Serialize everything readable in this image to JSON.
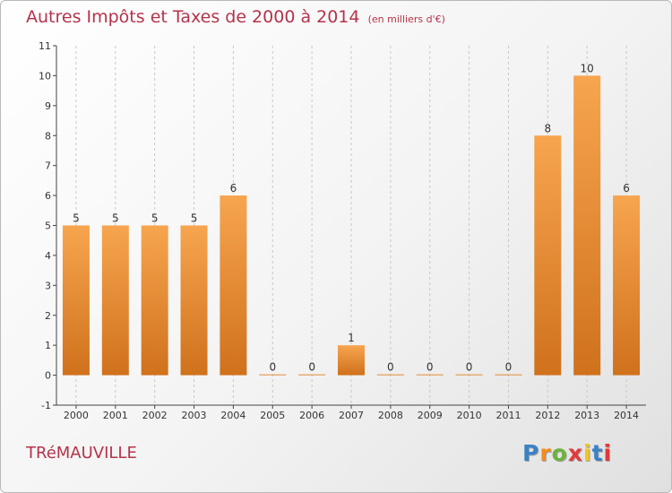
{
  "header": {
    "title": "Autres Impôts et Taxes de 2000 à 2014",
    "unit": "(en milliers d'€)"
  },
  "footer": {
    "commune": "TRéMAUVILLE",
    "logo_text": "Proxiti"
  },
  "colors": {
    "bar_light": "#f7a54f",
    "bar_dark": "#d0711c",
    "title": "#b5334a",
    "logo_letters": [
      "#3b82c4",
      "#f28c1c",
      "#6cb33f",
      "#e23a3a",
      "#f2c31c",
      "#3b82c4",
      "#e23a3a"
    ]
  },
  "chart_data": {
    "type": "bar",
    "categories": [
      "2000",
      "2001",
      "2002",
      "2003",
      "2004",
      "2005",
      "2006",
      "2007",
      "2008",
      "2009",
      "2010",
      "2011",
      "2012",
      "2013",
      "2014"
    ],
    "values": [
      5,
      5,
      5,
      5,
      6,
      0,
      0,
      1,
      0,
      0,
      0,
      0,
      8,
      10,
      6
    ],
    "data_labels": [
      "5",
      "5",
      "5",
      "5",
      "6",
      "0",
      "0",
      "1",
      "0",
      "0",
      "0",
      "0",
      "8",
      "10",
      "6"
    ],
    "y_ticks": [
      "-1",
      "0",
      "1",
      "2",
      "3",
      "4",
      "5",
      "6",
      "7",
      "8",
      "9",
      "10",
      "11"
    ],
    "ylim": [
      -1,
      11
    ],
    "grid": "vertical dashed",
    "legend": "none"
  }
}
